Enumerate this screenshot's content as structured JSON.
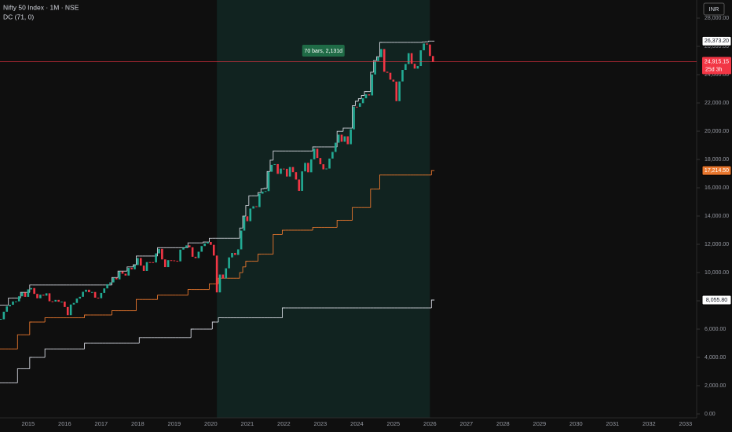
{
  "chart_data": {
    "type": "candlestick",
    "title": "Nifty 50 Index · 1M · NSE",
    "indicator": "DC (71, 0)",
    "currency": "INR",
    "up_color": "#22ab94",
    "down_color": "#f23645",
    "close": [
      6696,
      7230,
      7611,
      7721,
      7954,
      7965,
      8322,
      8588,
      8283,
      8809,
      8902,
      8491,
      8182,
      8434,
      8368,
      8533,
      7971,
      7949,
      8066,
      7935,
      7946,
      7563,
      6987,
      7738,
      7850,
      8160,
      8288,
      8639,
      8786,
      8611,
      8626,
      8224,
      8186,
      8561,
      8880,
      9174,
      9304,
      9621,
      9521,
      10077,
      9918,
      9789,
      10335,
      10227,
      10531,
      11028,
      10493,
      10114,
      10739,
      10736,
      10714,
      11357,
      11681,
      10930,
      10387,
      10877,
      10863,
      10831,
      10793,
      11624,
      11748,
      11923,
      11789,
      11118,
      11023,
      11474,
      11877,
      12056,
      12168,
      11962,
      11202,
      8598,
      9860,
      9580,
      10302,
      11073,
      11388,
      11248,
      11642,
      12969,
      13982,
      13635,
      14529,
      14691,
      14631,
      15583,
      15722,
      15763,
      17132,
      17618,
      17672,
      16983,
      17354,
      17340,
      16794,
      17465,
      17103,
      16585,
      15780,
      17158,
      17759,
      17094,
      18012,
      18758,
      18105,
      17662,
      17304,
      17360,
      18065,
      18534,
      19189,
      19754,
      19254,
      19638,
      19080,
      20133,
      21731,
      21726,
      21983,
      22327,
      22605,
      22531,
      24011,
      24951,
      25236,
      25811,
      24205,
      24131,
      23645,
      23508,
      22125,
      23519,
      24334,
      24751,
      25517,
      24768,
      24427,
      24611,
      25722,
      26203,
      26130,
      25320,
      24915.15
    ],
    "close_label": "24,915.15",
    "countdown": "25d 3h",
    "series": [
      {
        "color": "#d1d4dc",
        "last_label": "26,373.20",
        "values": [
          7700,
          7700,
          7700,
          8200,
          8200,
          8200,
          8200,
          8600,
          8600,
          8600,
          9120,
          9120,
          9120,
          9120,
          9120,
          9120,
          9120,
          9120,
          9120,
          9120,
          9120,
          9120,
          9120,
          9120,
          9120,
          9120,
          9120,
          9120,
          9120,
          9120,
          9120,
          9120,
          9120,
          9120,
          9120,
          9120,
          9120,
          9650,
          9650,
          10100,
          10100,
          10100,
          10400,
          10400,
          10550,
          11170,
          11170,
          11170,
          11170,
          11170,
          11170,
          11170,
          11760,
          11760,
          11760,
          11760,
          11760,
          11760,
          11760,
          11760,
          11760,
          11760,
          12100,
          12100,
          12100,
          12100,
          12100,
          12160,
          12160,
          12430,
          12430,
          12430,
          12430,
          12430,
          12430,
          12430,
          12430,
          12430,
          12430,
          13150,
          14000,
          14750,
          15430,
          15430,
          15430,
          15660,
          15920,
          15960,
          17150,
          17950,
          18600,
          18600,
          18600,
          18600,
          18600,
          18600,
          18600,
          18600,
          18600,
          18600,
          18600,
          18600,
          18600,
          18890,
          18890,
          18890,
          18890,
          18890,
          18890,
          18890,
          18890,
          19990,
          19990,
          20220,
          20220,
          20220,
          21800,
          22120,
          22300,
          22530,
          22800,
          22800,
          24170,
          25000,
          25270,
          26280,
          26280,
          26280,
          26280,
          26280,
          26280,
          26280,
          26280,
          26280,
          26280,
          26280,
          26280,
          26280,
          26280,
          26310,
          26325,
          26373.2,
          26373.2
        ]
      },
      {
        "color": "#e8772e",
        "last_label": "17,214.50",
        "values": [
          4600,
          4600,
          4600,
          4600,
          4600,
          4600,
          5600,
          5600,
          5600,
          5600,
          6500,
          6500,
          6500,
          6500,
          6500,
          6800,
          6800,
          6800,
          6800,
          6800,
          6800,
          6800,
          6800,
          6800,
          6800,
          6800,
          6800,
          6800,
          7000,
          7000,
          7000,
          7000,
          7000,
          7000,
          7000,
          7000,
          7000,
          7300,
          7300,
          7300,
          7300,
          7300,
          7300,
          7300,
          7300,
          8100,
          8100,
          8100,
          8100,
          8100,
          8100,
          8100,
          8400,
          8400,
          8400,
          8400,
          8400,
          8400,
          8400,
          8400,
          8400,
          8400,
          8800,
          8800,
          8800,
          8800,
          8800,
          8800,
          8800,
          9200,
          9200,
          9200,
          9600,
          9600,
          9600,
          9600,
          9600,
          9600,
          9600,
          10000,
          10400,
          10800,
          10800,
          10800,
          10800,
          11300,
          11300,
          11300,
          11300,
          11300,
          12700,
          12700,
          12700,
          13000,
          13000,
          13000,
          13000,
          13000,
          13000,
          13000,
          13000,
          13000,
          13000,
          13200,
          13200,
          13200,
          13200,
          13200,
          13200,
          13200,
          13200,
          13700,
          13700,
          13700,
          13700,
          13700,
          14600,
          14600,
          14600,
          14600,
          14600,
          14600,
          15900,
          15900,
          15900,
          16900,
          16900,
          16900,
          16900,
          16900,
          16900,
          16900,
          16900,
          16900,
          16900,
          16900,
          16900,
          16900,
          16900,
          16900,
          16900,
          16900,
          17214.5
        ]
      },
      {
        "color": "#d1d4dc",
        "last_label": "8,055.80",
        "values": [
          2200,
          2200,
          2200,
          2200,
          2200,
          2200,
          3200,
          3200,
          3200,
          3200,
          4000,
          4000,
          4000,
          4000,
          4000,
          4600,
          4600,
          4600,
          4600,
          4600,
          4600,
          4600,
          4600,
          4600,
          4600,
          4600,
          4600,
          4600,
          5000,
          5000,
          5000,
          5000,
          5000,
          5000,
          5000,
          5000,
          5000,
          5000,
          5000,
          5000,
          5000,
          5000,
          5000,
          5000,
          5000,
          5000,
          5400,
          5400,
          5400,
          5400,
          5400,
          5400,
          5400,
          5400,
          5400,
          5400,
          5400,
          5400,
          5400,
          5400,
          5400,
          5400,
          5400,
          6000,
          6000,
          6000,
          6000,
          6000,
          6000,
          6000,
          6500,
          6500,
          6800,
          6800,
          6800,
          6800,
          6800,
          6800,
          6800,
          6800,
          6800,
          6800,
          6800,
          6800,
          6800,
          6800,
          6800,
          6800,
          6800,
          6800,
          6800,
          6800,
          6800,
          7500,
          7500,
          7500,
          7500,
          7500,
          7500,
          7500,
          7500,
          7500,
          7500,
          7500,
          7500,
          7500,
          7500,
          7500,
          7500,
          7500,
          7500,
          7500,
          7500,
          7500,
          7500,
          7500,
          7500,
          7500,
          7500,
          7500,
          7500,
          7500,
          7500,
          7500,
          7500,
          7500,
          7500,
          7500,
          7500,
          7500,
          7500,
          7500,
          7500,
          7500,
          7500,
          7500,
          7500,
          7500,
          7500,
          7500,
          7500,
          7500,
          8055.8
        ]
      }
    ],
    "ylim": [
      0,
      29280
    ],
    "yticks": [
      {
        "value": 0,
        "label": "0.00"
      },
      {
        "value": 2000,
        "label": "2,000.00"
      },
      {
        "value": 4000,
        "label": "4,000.00"
      },
      {
        "value": 6000,
        "label": "6,000.00"
      },
      {
        "value": 8000,
        "label": "8,000.00"
      },
      {
        "value": 10000,
        "label": "10,000.00"
      },
      {
        "value": 12000,
        "label": "12,000.00"
      },
      {
        "value": 14000,
        "label": "14,000.00"
      },
      {
        "value": 16000,
        "label": "16,000.00"
      },
      {
        "value": 18000,
        "label": "18,000.00"
      },
      {
        "value": 20000,
        "label": "20,000.00"
      },
      {
        "value": 22000,
        "label": "22,000.00"
      },
      {
        "value": 24000,
        "label": "24,000.00"
      },
      {
        "value": 26000,
        "label": "26,000.00"
      },
      {
        "value": 28000,
        "label": "28,000.00"
      }
    ],
    "xticks": [
      "2015",
      "2016",
      "2017",
      "2018",
      "2019",
      "2020",
      "2021",
      "2022",
      "2023",
      "2024",
      "2025",
      "2026",
      "2027",
      "2028",
      "2029",
      "2030",
      "2031",
      "2032",
      "2033"
    ],
    "range": {
      "start": 71,
      "end": 141,
      "label": "70 bars, 2,131d"
    }
  }
}
